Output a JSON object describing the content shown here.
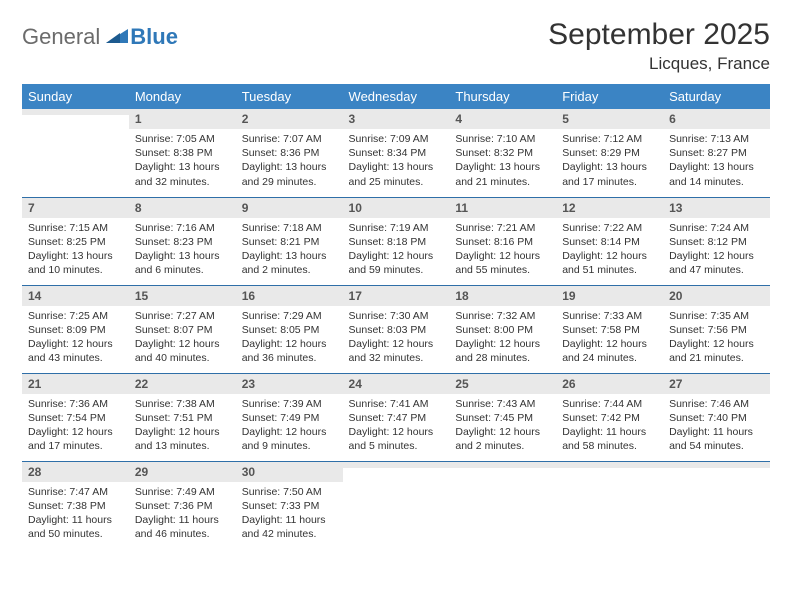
{
  "brand": {
    "part1": "General",
    "part2": "Blue"
  },
  "title": "September 2025",
  "location": "Licques, France",
  "colors": {
    "header_bg": "#3b84c4",
    "header_text": "#ffffff",
    "daynum_bg": "#e9e9e9",
    "row_border": "#2f6fa8",
    "logo_gray": "#6b6b6b",
    "logo_blue": "#2f78b8",
    "text": "#333333"
  },
  "weekdays": [
    "Sunday",
    "Monday",
    "Tuesday",
    "Wednesday",
    "Thursday",
    "Friday",
    "Saturday"
  ],
  "weeks": [
    [
      {
        "n": "",
        "sunrise": "",
        "sunset": "",
        "daylight": ""
      },
      {
        "n": "1",
        "sunrise": "Sunrise: 7:05 AM",
        "sunset": "Sunset: 8:38 PM",
        "daylight": "Daylight: 13 hours and 32 minutes."
      },
      {
        "n": "2",
        "sunrise": "Sunrise: 7:07 AM",
        "sunset": "Sunset: 8:36 PM",
        "daylight": "Daylight: 13 hours and 29 minutes."
      },
      {
        "n": "3",
        "sunrise": "Sunrise: 7:09 AM",
        "sunset": "Sunset: 8:34 PM",
        "daylight": "Daylight: 13 hours and 25 minutes."
      },
      {
        "n": "4",
        "sunrise": "Sunrise: 7:10 AM",
        "sunset": "Sunset: 8:32 PM",
        "daylight": "Daylight: 13 hours and 21 minutes."
      },
      {
        "n": "5",
        "sunrise": "Sunrise: 7:12 AM",
        "sunset": "Sunset: 8:29 PM",
        "daylight": "Daylight: 13 hours and 17 minutes."
      },
      {
        "n": "6",
        "sunrise": "Sunrise: 7:13 AM",
        "sunset": "Sunset: 8:27 PM",
        "daylight": "Daylight: 13 hours and 14 minutes."
      }
    ],
    [
      {
        "n": "7",
        "sunrise": "Sunrise: 7:15 AM",
        "sunset": "Sunset: 8:25 PM",
        "daylight": "Daylight: 13 hours and 10 minutes."
      },
      {
        "n": "8",
        "sunrise": "Sunrise: 7:16 AM",
        "sunset": "Sunset: 8:23 PM",
        "daylight": "Daylight: 13 hours and 6 minutes."
      },
      {
        "n": "9",
        "sunrise": "Sunrise: 7:18 AM",
        "sunset": "Sunset: 8:21 PM",
        "daylight": "Daylight: 13 hours and 2 minutes."
      },
      {
        "n": "10",
        "sunrise": "Sunrise: 7:19 AM",
        "sunset": "Sunset: 8:18 PM",
        "daylight": "Daylight: 12 hours and 59 minutes."
      },
      {
        "n": "11",
        "sunrise": "Sunrise: 7:21 AM",
        "sunset": "Sunset: 8:16 PM",
        "daylight": "Daylight: 12 hours and 55 minutes."
      },
      {
        "n": "12",
        "sunrise": "Sunrise: 7:22 AM",
        "sunset": "Sunset: 8:14 PM",
        "daylight": "Daylight: 12 hours and 51 minutes."
      },
      {
        "n": "13",
        "sunrise": "Sunrise: 7:24 AM",
        "sunset": "Sunset: 8:12 PM",
        "daylight": "Daylight: 12 hours and 47 minutes."
      }
    ],
    [
      {
        "n": "14",
        "sunrise": "Sunrise: 7:25 AM",
        "sunset": "Sunset: 8:09 PM",
        "daylight": "Daylight: 12 hours and 43 minutes."
      },
      {
        "n": "15",
        "sunrise": "Sunrise: 7:27 AM",
        "sunset": "Sunset: 8:07 PM",
        "daylight": "Daylight: 12 hours and 40 minutes."
      },
      {
        "n": "16",
        "sunrise": "Sunrise: 7:29 AM",
        "sunset": "Sunset: 8:05 PM",
        "daylight": "Daylight: 12 hours and 36 minutes."
      },
      {
        "n": "17",
        "sunrise": "Sunrise: 7:30 AM",
        "sunset": "Sunset: 8:03 PM",
        "daylight": "Daylight: 12 hours and 32 minutes."
      },
      {
        "n": "18",
        "sunrise": "Sunrise: 7:32 AM",
        "sunset": "Sunset: 8:00 PM",
        "daylight": "Daylight: 12 hours and 28 minutes."
      },
      {
        "n": "19",
        "sunrise": "Sunrise: 7:33 AM",
        "sunset": "Sunset: 7:58 PM",
        "daylight": "Daylight: 12 hours and 24 minutes."
      },
      {
        "n": "20",
        "sunrise": "Sunrise: 7:35 AM",
        "sunset": "Sunset: 7:56 PM",
        "daylight": "Daylight: 12 hours and 21 minutes."
      }
    ],
    [
      {
        "n": "21",
        "sunrise": "Sunrise: 7:36 AM",
        "sunset": "Sunset: 7:54 PM",
        "daylight": "Daylight: 12 hours and 17 minutes."
      },
      {
        "n": "22",
        "sunrise": "Sunrise: 7:38 AM",
        "sunset": "Sunset: 7:51 PM",
        "daylight": "Daylight: 12 hours and 13 minutes."
      },
      {
        "n": "23",
        "sunrise": "Sunrise: 7:39 AM",
        "sunset": "Sunset: 7:49 PM",
        "daylight": "Daylight: 12 hours and 9 minutes."
      },
      {
        "n": "24",
        "sunrise": "Sunrise: 7:41 AM",
        "sunset": "Sunset: 7:47 PM",
        "daylight": "Daylight: 12 hours and 5 minutes."
      },
      {
        "n": "25",
        "sunrise": "Sunrise: 7:43 AM",
        "sunset": "Sunset: 7:45 PM",
        "daylight": "Daylight: 12 hours and 2 minutes."
      },
      {
        "n": "26",
        "sunrise": "Sunrise: 7:44 AM",
        "sunset": "Sunset: 7:42 PM",
        "daylight": "Daylight: 11 hours and 58 minutes."
      },
      {
        "n": "27",
        "sunrise": "Sunrise: 7:46 AM",
        "sunset": "Sunset: 7:40 PM",
        "daylight": "Daylight: 11 hours and 54 minutes."
      }
    ],
    [
      {
        "n": "28",
        "sunrise": "Sunrise: 7:47 AM",
        "sunset": "Sunset: 7:38 PM",
        "daylight": "Daylight: 11 hours and 50 minutes."
      },
      {
        "n": "29",
        "sunrise": "Sunrise: 7:49 AM",
        "sunset": "Sunset: 7:36 PM",
        "daylight": "Daylight: 11 hours and 46 minutes."
      },
      {
        "n": "30",
        "sunrise": "Sunrise: 7:50 AM",
        "sunset": "Sunset: 7:33 PM",
        "daylight": "Daylight: 11 hours and 42 minutes."
      },
      {
        "n": "",
        "sunrise": "",
        "sunset": "",
        "daylight": ""
      },
      {
        "n": "",
        "sunrise": "",
        "sunset": "",
        "daylight": ""
      },
      {
        "n": "",
        "sunrise": "",
        "sunset": "",
        "daylight": ""
      },
      {
        "n": "",
        "sunrise": "",
        "sunset": "",
        "daylight": ""
      }
    ]
  ]
}
